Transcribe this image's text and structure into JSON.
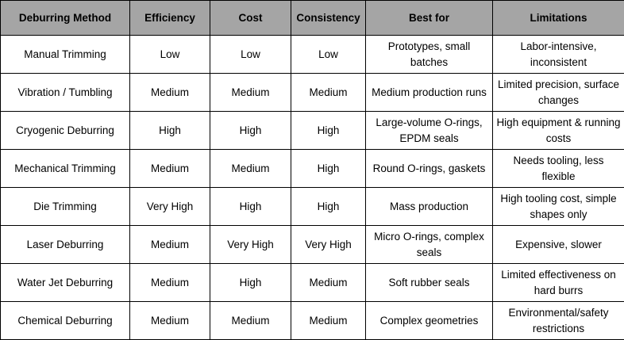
{
  "table": {
    "headers": [
      "Deburring Method",
      "Efficiency",
      "Cost",
      "Consistency",
      "Best for",
      "Limitations"
    ],
    "rows": [
      [
        "Manual Trimming",
        "Low",
        "Low",
        "Low",
        "Prototypes, small batches",
        "Labor-intensive, inconsistent"
      ],
      [
        "Vibration / Tumbling",
        "Medium",
        "Medium",
        "Medium",
        "Medium production runs",
        "Limited precision, surface changes"
      ],
      [
        "Cryogenic Deburring",
        "High",
        "High",
        "High",
        "Large-volume O-rings, EPDM seals",
        "High equipment & running costs"
      ],
      [
        "Mechanical Trimming",
        "Medium",
        "Medium",
        "High",
        "Round O-rings, gaskets",
        "Needs tooling, less flexible"
      ],
      [
        "Die Trimming",
        "Very High",
        "High",
        "High",
        "Mass production",
        "High tooling cost, simple shapes only"
      ],
      [
        "Laser Deburring",
        "Medium",
        "Very High",
        "Very High",
        "Micro O-rings, complex seals",
        "Expensive, slower"
      ],
      [
        "Water Jet Deburring",
        "Medium",
        "High",
        "Medium",
        "Soft rubber seals",
        "Limited effectiveness on hard burrs"
      ],
      [
        "Chemical Deburring",
        "Medium",
        "Medium",
        "Medium",
        "Complex geometries",
        "Environmental/safety restrictions"
      ]
    ],
    "colors": {
      "header_background": "#a5a5a5",
      "border": "#000000",
      "text": "#000000"
    }
  }
}
